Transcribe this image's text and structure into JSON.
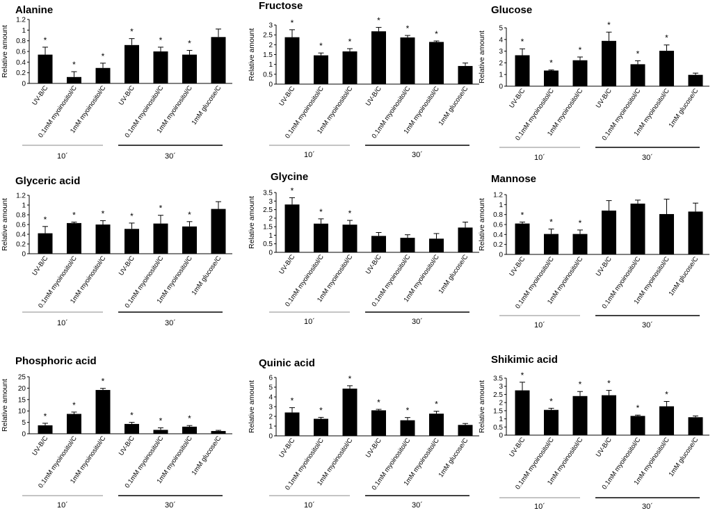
{
  "figure": {
    "ylabel": "Relative amount",
    "group_labels": [
      "10´",
      "30´"
    ],
    "star_symbol": "*"
  },
  "chart_data": [
    {
      "type": "bar",
      "title": "Alanine",
      "ylabel": "Relative amount",
      "ylim": [
        0,
        1.2
      ],
      "yticks": [
        "0",
        "0.2",
        "0.4",
        "0.6",
        "0.8",
        "1",
        "1.2"
      ],
      "categories": [
        "UV-B/C",
        "0.1mM myoinositol/C",
        "1mM myoinositol/C",
        "UV-B/C",
        "0.1mM myoinositol/C",
        "1mM myoinositol/C",
        "1mM glucose/C"
      ],
      "values": [
        0.54,
        0.12,
        0.29,
        0.72,
        0.6,
        0.54,
        0.87
      ],
      "errors": [
        0.14,
        0.1,
        0.09,
        0.12,
        0.08,
        0.08,
        0.15
      ],
      "significant": [
        true,
        true,
        true,
        true,
        true,
        true,
        false
      ],
      "groups": [
        {
          "label": "10´",
          "count": 3
        },
        {
          "label": "30´",
          "count": 4
        }
      ]
    },
    {
      "type": "bar",
      "title": "Fructose",
      "ylabel": "Relative amount",
      "ylim": [
        0,
        3
      ],
      "yticks": [
        "0",
        "0.5",
        "1",
        "1.5",
        "2",
        "2.5",
        "3"
      ],
      "categories": [
        "UV-B/C",
        "0.1mM myoinositol/C",
        "1mM myoinositol/C",
        "UV-B/C",
        "0.1mM myoinositol/C",
        "1mM myoinositol/C",
        "1mM glucose/C"
      ],
      "values": [
        2.38,
        1.46,
        1.66,
        2.68,
        2.37,
        2.14,
        0.92
      ],
      "errors": [
        0.38,
        0.12,
        0.14,
        0.2,
        0.1,
        0.05,
        0.15
      ],
      "significant": [
        true,
        true,
        true,
        true,
        true,
        true,
        false
      ],
      "groups": [
        {
          "label": "10´",
          "count": 3
        },
        {
          "label": "30´",
          "count": 4
        }
      ]
    },
    {
      "type": "bar",
      "title": "Glucose",
      "ylabel": "Relative amount",
      "ylim": [
        0,
        5
      ],
      "yticks": [
        "0",
        "1",
        "2",
        "3",
        "4",
        "5"
      ],
      "categories": [
        "UV-B/C",
        "0.1mM myoinositol/C",
        "1mM myoinositol/C",
        "UV-B/C",
        "0.1mM myoinositol/C",
        "1mM myoinositol/C",
        "1mM glucose/C"
      ],
      "values": [
        2.65,
        1.34,
        2.22,
        3.88,
        1.88,
        3.03,
        0.97
      ],
      "errors": [
        0.55,
        0.05,
        0.28,
        0.75,
        0.3,
        0.5,
        0.15
      ],
      "significant": [
        true,
        true,
        true,
        true,
        true,
        true,
        false
      ],
      "groups": [
        {
          "label": "10´",
          "count": 3
        },
        {
          "label": "30´",
          "count": 4
        }
      ]
    },
    {
      "type": "bar",
      "title": "Glyceric acid",
      "ylabel": "Relative amount",
      "ylim": [
        0,
        1.2
      ],
      "yticks": [
        "0",
        "0.2",
        "0.4",
        "0.6",
        "0.8",
        "1",
        "1.2"
      ],
      "categories": [
        "UV-B/C",
        "0.1mM myoinositol/C",
        "1mM myoinositol/C",
        "UV-B/C",
        "0.1mM myoinositol/C",
        "1mM myoinositol/C",
        "1mM glucose/C"
      ],
      "values": [
        0.42,
        0.63,
        0.6,
        0.51,
        0.62,
        0.56,
        0.92
      ],
      "errors": [
        0.14,
        0.02,
        0.08,
        0.12,
        0.17,
        0.1,
        0.15
      ],
      "significant": [
        true,
        true,
        true,
        true,
        true,
        true,
        false
      ],
      "groups": [
        {
          "label": "10´",
          "count": 3
        },
        {
          "label": "30´",
          "count": 4
        }
      ]
    },
    {
      "type": "bar",
      "title": "Glycine",
      "ylabel": "Relative amount",
      "ylim": [
        0,
        3.5
      ],
      "yticks": [
        "0",
        "0.5",
        "1",
        "1.5",
        "2",
        "2.5",
        "3",
        "3.5"
      ],
      "categories": [
        "UV-B/C",
        "0.1mM myoinositol/C",
        "1mM myoinositol/C",
        "UV-B/C",
        "0.1mM myoinositol/C",
        "1mM myoinositol/C",
        "1mM glucose/C"
      ],
      "values": [
        2.8,
        1.68,
        1.62,
        0.96,
        0.85,
        0.8,
        1.45
      ],
      "errors": [
        0.4,
        0.28,
        0.25,
        0.2,
        0.18,
        0.3,
        0.32
      ],
      "significant": [
        true,
        true,
        true,
        false,
        false,
        false,
        false
      ],
      "groups": [
        {
          "label": "10´",
          "count": 3
        },
        {
          "label": "30´",
          "count": 4
        }
      ]
    },
    {
      "type": "bar",
      "title": "Mannose",
      "ylabel": "Relative amount",
      "ylim": [
        0,
        1.2
      ],
      "yticks": [
        "0",
        "0.2",
        "0.4",
        "0.6",
        "0.8",
        "1",
        "1.2"
      ],
      "categories": [
        "UV-B/C",
        "0.1mM myoinositol/C",
        "1mM myoinositol/C",
        "UV-B/C",
        "0.1mM myoinositol/C",
        "1mM myoinositol/C",
        "1mM glucose/C"
      ],
      "values": [
        0.62,
        0.41,
        0.41,
        0.88,
        1.02,
        0.81,
        0.86
      ],
      "errors": [
        0.03,
        0.1,
        0.08,
        0.2,
        0.07,
        0.3,
        0.17
      ],
      "significant": [
        true,
        true,
        true,
        false,
        false,
        false,
        false
      ],
      "groups": [
        {
          "label": "10´",
          "count": 3
        },
        {
          "label": "30´",
          "count": 4
        }
      ]
    },
    {
      "type": "bar",
      "title": "Phosphoric acid",
      "ylabel": "Relative amount",
      "ylim": [
        0,
        25
      ],
      "yticks": [
        "0",
        "5",
        "10",
        "15",
        "20",
        "25"
      ],
      "categories": [
        "UV-B/C",
        "0.1mM myoinositol/C",
        "1mM myoinositol/C",
        "UV-B/C",
        "0.1mM myoinositol/C",
        "1mM myoinositol/C",
        "1mM glucose/C"
      ],
      "values": [
        3.7,
        8.7,
        19.2,
        4.3,
        1.7,
        3.1,
        1.2
      ],
      "errors": [
        0.9,
        0.8,
        0.7,
        0.7,
        0.9,
        0.5,
        0.3
      ],
      "significant": [
        true,
        true,
        true,
        true,
        true,
        true,
        false
      ],
      "groups": [
        {
          "label": "10´",
          "count": 3
        },
        {
          "label": "30´",
          "count": 4
        }
      ]
    },
    {
      "type": "bar",
      "title": "Quinic acid",
      "ylabel": "Relative amount",
      "ylim": [
        0,
        6
      ],
      "yticks": [
        "0",
        "1",
        "2",
        "3",
        "4",
        "5",
        "6"
      ],
      "categories": [
        "UV-B/C",
        "0.1mM myoinositol/C",
        "1mM myoinositol/C",
        "UV-B/C",
        "0.1mM myoinositol/C",
        "1mM myoinositol/C",
        "1mM glucose/C"
      ],
      "values": [
        2.4,
        1.75,
        4.85,
        2.62,
        1.6,
        2.28,
        1.12
      ],
      "errors": [
        0.5,
        0.15,
        0.3,
        0.1,
        0.28,
        0.25,
        0.15
      ],
      "significant": [
        true,
        true,
        true,
        true,
        true,
        true,
        false
      ],
      "groups": [
        {
          "label": "10´",
          "count": 3
        },
        {
          "label": "30´",
          "count": 4
        }
      ]
    },
    {
      "type": "bar",
      "title": "Shikimic acid",
      "ylabel": "Relative amount",
      "ylim": [
        0,
        3.5
      ],
      "yticks": [
        "0",
        "0.5",
        "1",
        "1.5",
        "2",
        "2.5",
        "3",
        "3.5"
      ],
      "categories": [
        "UV-B/C",
        "0.1mM myoinositol/C",
        "1mM myoinositol/C",
        "UV-B/C",
        "0.1mM myoinositol/C",
        "1mM myoinositol/C",
        "1mM glucose/C"
      ],
      "values": [
        2.75,
        1.55,
        2.4,
        2.45,
        1.18,
        1.77,
        1.1
      ],
      "errors": [
        0.5,
        0.1,
        0.28,
        0.3,
        0.05,
        0.3,
        0.08
      ],
      "significant": [
        true,
        true,
        true,
        true,
        true,
        true,
        false
      ],
      "groups": [
        {
          "label": "10´",
          "count": 3
        },
        {
          "label": "30´",
          "count": 4
        }
      ]
    }
  ]
}
